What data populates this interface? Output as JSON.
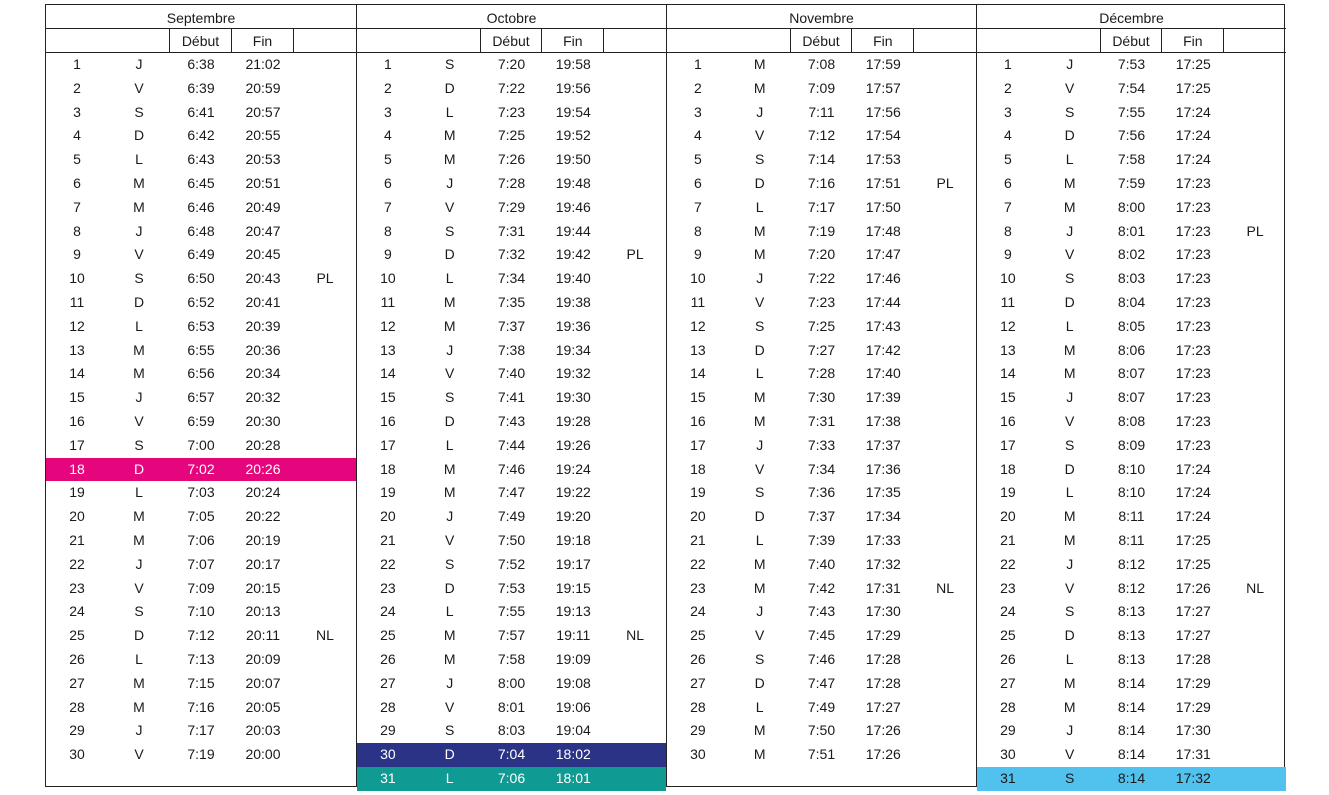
{
  "headers": {
    "start": "Début",
    "end": "Fin"
  },
  "colors": {
    "magenta": "#e5057d",
    "navy": "#2b3387",
    "teal": "#0f9a93",
    "sky": "#51c1ee"
  },
  "months": [
    {
      "name": "Septembre",
      "rows": [
        {
          "d": "1",
          "w": "J",
          "s": "6:38",
          "e": "21:02",
          "n": ""
        },
        {
          "d": "2",
          "w": "V",
          "s": "6:39",
          "e": "20:59",
          "n": ""
        },
        {
          "d": "3",
          "w": "S",
          "s": "6:41",
          "e": "20:57",
          "n": ""
        },
        {
          "d": "4",
          "w": "D",
          "s": "6:42",
          "e": "20:55",
          "n": ""
        },
        {
          "d": "5",
          "w": "L",
          "s": "6:43",
          "e": "20:53",
          "n": ""
        },
        {
          "d": "6",
          "w": "M",
          "s": "6:45",
          "e": "20:51",
          "n": ""
        },
        {
          "d": "7",
          "w": "M",
          "s": "6:46",
          "e": "20:49",
          "n": ""
        },
        {
          "d": "8",
          "w": "J",
          "s": "6:48",
          "e": "20:47",
          "n": ""
        },
        {
          "d": "9",
          "w": "V",
          "s": "6:49",
          "e": "20:45",
          "n": ""
        },
        {
          "d": "10",
          "w": "S",
          "s": "6:50",
          "e": "20:43",
          "n": "PL"
        },
        {
          "d": "11",
          "w": "D",
          "s": "6:52",
          "e": "20:41",
          "n": ""
        },
        {
          "d": "12",
          "w": "L",
          "s": "6:53",
          "e": "20:39",
          "n": ""
        },
        {
          "d": "13",
          "w": "M",
          "s": "6:55",
          "e": "20:36",
          "n": ""
        },
        {
          "d": "14",
          "w": "M",
          "s": "6:56",
          "e": "20:34",
          "n": ""
        },
        {
          "d": "15",
          "w": "J",
          "s": "6:57",
          "e": "20:32",
          "n": ""
        },
        {
          "d": "16",
          "w": "V",
          "s": "6:59",
          "e": "20:30",
          "n": ""
        },
        {
          "d": "17",
          "w": "S",
          "s": "7:00",
          "e": "20:28",
          "n": ""
        },
        {
          "d": "18",
          "w": "D",
          "s": "7:02",
          "e": "20:26",
          "n": "",
          "hl": "magenta"
        },
        {
          "d": "19",
          "w": "L",
          "s": "7:03",
          "e": "20:24",
          "n": ""
        },
        {
          "d": "20",
          "w": "M",
          "s": "7:05",
          "e": "20:22",
          "n": ""
        },
        {
          "d": "21",
          "w": "M",
          "s": "7:06",
          "e": "20:19",
          "n": ""
        },
        {
          "d": "22",
          "w": "J",
          "s": "7:07",
          "e": "20:17",
          "n": ""
        },
        {
          "d": "23",
          "w": "V",
          "s": "7:09",
          "e": "20:15",
          "n": ""
        },
        {
          "d": "24",
          "w": "S",
          "s": "7:10",
          "e": "20:13",
          "n": ""
        },
        {
          "d": "25",
          "w": "D",
          "s": "7:12",
          "e": "20:11",
          "n": "NL"
        },
        {
          "d": "26",
          "w": "L",
          "s": "7:13",
          "e": "20:09",
          "n": ""
        },
        {
          "d": "27",
          "w": "M",
          "s": "7:15",
          "e": "20:07",
          "n": ""
        },
        {
          "d": "28",
          "w": "M",
          "s": "7:16",
          "e": "20:05",
          "n": ""
        },
        {
          "d": "29",
          "w": "J",
          "s": "7:17",
          "e": "20:03",
          "n": ""
        },
        {
          "d": "30",
          "w": "V",
          "s": "7:19",
          "e": "20:00",
          "n": ""
        }
      ]
    },
    {
      "name": "Octobre",
      "rows": [
        {
          "d": "1",
          "w": "S",
          "s": "7:20",
          "e": "19:58",
          "n": ""
        },
        {
          "d": "2",
          "w": "D",
          "s": "7:22",
          "e": "19:56",
          "n": ""
        },
        {
          "d": "3",
          "w": "L",
          "s": "7:23",
          "e": "19:54",
          "n": ""
        },
        {
          "d": "4",
          "w": "M",
          "s": "7:25",
          "e": "19:52",
          "n": ""
        },
        {
          "d": "5",
          "w": "M",
          "s": "7:26",
          "e": "19:50",
          "n": ""
        },
        {
          "d": "6",
          "w": "J",
          "s": "7:28",
          "e": "19:48",
          "n": ""
        },
        {
          "d": "7",
          "w": "V",
          "s": "7:29",
          "e": "19:46",
          "n": ""
        },
        {
          "d": "8",
          "w": "S",
          "s": "7:31",
          "e": "19:44",
          "n": ""
        },
        {
          "d": "9",
          "w": "D",
          "s": "7:32",
          "e": "19:42",
          "n": "PL"
        },
        {
          "d": "10",
          "w": "L",
          "s": "7:34",
          "e": "19:40",
          "n": ""
        },
        {
          "d": "11",
          "w": "M",
          "s": "7:35",
          "e": "19:38",
          "n": ""
        },
        {
          "d": "12",
          "w": "M",
          "s": "7:37",
          "e": "19:36",
          "n": ""
        },
        {
          "d": "13",
          "w": "J",
          "s": "7:38",
          "e": "19:34",
          "n": ""
        },
        {
          "d": "14",
          "w": "V",
          "s": "7:40",
          "e": "19:32",
          "n": ""
        },
        {
          "d": "15",
          "w": "S",
          "s": "7:41",
          "e": "19:30",
          "n": ""
        },
        {
          "d": "16",
          "w": "D",
          "s": "7:43",
          "e": "19:28",
          "n": ""
        },
        {
          "d": "17",
          "w": "L",
          "s": "7:44",
          "e": "19:26",
          "n": ""
        },
        {
          "d": "18",
          "w": "M",
          "s": "7:46",
          "e": "19:24",
          "n": ""
        },
        {
          "d": "19",
          "w": "M",
          "s": "7:47",
          "e": "19:22",
          "n": ""
        },
        {
          "d": "20",
          "w": "J",
          "s": "7:49",
          "e": "19:20",
          "n": ""
        },
        {
          "d": "21",
          "w": "V",
          "s": "7:50",
          "e": "19:18",
          "n": ""
        },
        {
          "d": "22",
          "w": "S",
          "s": "7:52",
          "e": "19:17",
          "n": ""
        },
        {
          "d": "23",
          "w": "D",
          "s": "7:53",
          "e": "19:15",
          "n": ""
        },
        {
          "d": "24",
          "w": "L",
          "s": "7:55",
          "e": "19:13",
          "n": ""
        },
        {
          "d": "25",
          "w": "M",
          "s": "7:57",
          "e": "19:11",
          "n": "NL"
        },
        {
          "d": "26",
          "w": "M",
          "s": "7:58",
          "e": "19:09",
          "n": ""
        },
        {
          "d": "27",
          "w": "J",
          "s": "8:00",
          "e": "19:08",
          "n": ""
        },
        {
          "d": "28",
          "w": "V",
          "s": "8:01",
          "e": "19:06",
          "n": ""
        },
        {
          "d": "29",
          "w": "S",
          "s": "8:03",
          "e": "19:04",
          "n": ""
        },
        {
          "d": "30",
          "w": "D",
          "s": "7:04",
          "e": "18:02",
          "n": "",
          "hl": "navy"
        },
        {
          "d": "31",
          "w": "L",
          "s": "7:06",
          "e": "18:01",
          "n": "",
          "hl": "teal"
        }
      ]
    },
    {
      "name": "Novembre",
      "rows": [
        {
          "d": "1",
          "w": "M",
          "s": "7:08",
          "e": "17:59",
          "n": ""
        },
        {
          "d": "2",
          "w": "M",
          "s": "7:09",
          "e": "17:57",
          "n": ""
        },
        {
          "d": "3",
          "w": "J",
          "s": "7:11",
          "e": "17:56",
          "n": ""
        },
        {
          "d": "4",
          "w": "V",
          "s": "7:12",
          "e": "17:54",
          "n": ""
        },
        {
          "d": "5",
          "w": "S",
          "s": "7:14",
          "e": "17:53",
          "n": ""
        },
        {
          "d": "6",
          "w": "D",
          "s": "7:16",
          "e": "17:51",
          "n": "PL"
        },
        {
          "d": "7",
          "w": "L",
          "s": "7:17",
          "e": "17:50",
          "n": ""
        },
        {
          "d": "8",
          "w": "M",
          "s": "7:19",
          "e": "17:48",
          "n": ""
        },
        {
          "d": "9",
          "w": "M",
          "s": "7:20",
          "e": "17:47",
          "n": ""
        },
        {
          "d": "10",
          "w": "J",
          "s": "7:22",
          "e": "17:46",
          "n": ""
        },
        {
          "d": "11",
          "w": "V",
          "s": "7:23",
          "e": "17:44",
          "n": ""
        },
        {
          "d": "12",
          "w": "S",
          "s": "7:25",
          "e": "17:43",
          "n": ""
        },
        {
          "d": "13",
          "w": "D",
          "s": "7:27",
          "e": "17:42",
          "n": ""
        },
        {
          "d": "14",
          "w": "L",
          "s": "7:28",
          "e": "17:40",
          "n": ""
        },
        {
          "d": "15",
          "w": "M",
          "s": "7:30",
          "e": "17:39",
          "n": ""
        },
        {
          "d": "16",
          "w": "M",
          "s": "7:31",
          "e": "17:38",
          "n": ""
        },
        {
          "d": "17",
          "w": "J",
          "s": "7:33",
          "e": "17:37",
          "n": ""
        },
        {
          "d": "18",
          "w": "V",
          "s": "7:34",
          "e": "17:36",
          "n": ""
        },
        {
          "d": "19",
          "w": "S",
          "s": "7:36",
          "e": "17:35",
          "n": ""
        },
        {
          "d": "20",
          "w": "D",
          "s": "7:37",
          "e": "17:34",
          "n": ""
        },
        {
          "d": "21",
          "w": "L",
          "s": "7:39",
          "e": "17:33",
          "n": ""
        },
        {
          "d": "22",
          "w": "M",
          "s": "7:40",
          "e": "17:32",
          "n": ""
        },
        {
          "d": "23",
          "w": "M",
          "s": "7:42",
          "e": "17:31",
          "n": "NL"
        },
        {
          "d": "24",
          "w": "J",
          "s": "7:43",
          "e": "17:30",
          "n": ""
        },
        {
          "d": "25",
          "w": "V",
          "s": "7:45",
          "e": "17:29",
          "n": ""
        },
        {
          "d": "26",
          "w": "S",
          "s": "7:46",
          "e": "17:28",
          "n": ""
        },
        {
          "d": "27",
          "w": "D",
          "s": "7:47",
          "e": "17:28",
          "n": ""
        },
        {
          "d": "28",
          "w": "L",
          "s": "7:49",
          "e": "17:27",
          "n": ""
        },
        {
          "d": "29",
          "w": "M",
          "s": "7:50",
          "e": "17:26",
          "n": ""
        },
        {
          "d": "30",
          "w": "M",
          "s": "7:51",
          "e": "17:26",
          "n": ""
        }
      ]
    },
    {
      "name": "Décembre",
      "rows": [
        {
          "d": "1",
          "w": "J",
          "s": "7:53",
          "e": "17:25",
          "n": ""
        },
        {
          "d": "2",
          "w": "V",
          "s": "7:54",
          "e": "17:25",
          "n": ""
        },
        {
          "d": "3",
          "w": "S",
          "s": "7:55",
          "e": "17:24",
          "n": ""
        },
        {
          "d": "4",
          "w": "D",
          "s": "7:56",
          "e": "17:24",
          "n": ""
        },
        {
          "d": "5",
          "w": "L",
          "s": "7:58",
          "e": "17:24",
          "n": ""
        },
        {
          "d": "6",
          "w": "M",
          "s": "7:59",
          "e": "17:23",
          "n": ""
        },
        {
          "d": "7",
          "w": "M",
          "s": "8:00",
          "e": "17:23",
          "n": ""
        },
        {
          "d": "8",
          "w": "J",
          "s": "8:01",
          "e": "17:23",
          "n": "PL"
        },
        {
          "d": "9",
          "w": "V",
          "s": "8:02",
          "e": "17:23",
          "n": ""
        },
        {
          "d": "10",
          "w": "S",
          "s": "8:03",
          "e": "17:23",
          "n": ""
        },
        {
          "d": "11",
          "w": "D",
          "s": "8:04",
          "e": "17:23",
          "n": ""
        },
        {
          "d": "12",
          "w": "L",
          "s": "8:05",
          "e": "17:23",
          "n": ""
        },
        {
          "d": "13",
          "w": "M",
          "s": "8:06",
          "e": "17:23",
          "n": ""
        },
        {
          "d": "14",
          "w": "M",
          "s": "8:07",
          "e": "17:23",
          "n": ""
        },
        {
          "d": "15",
          "w": "J",
          "s": "8:07",
          "e": "17:23",
          "n": ""
        },
        {
          "d": "16",
          "w": "V",
          "s": "8:08",
          "e": "17:23",
          "n": ""
        },
        {
          "d": "17",
          "w": "S",
          "s": "8:09",
          "e": "17:23",
          "n": ""
        },
        {
          "d": "18",
          "w": "D",
          "s": "8:10",
          "e": "17:24",
          "n": ""
        },
        {
          "d": "19",
          "w": "L",
          "s": "8:10",
          "e": "17:24",
          "n": ""
        },
        {
          "d": "20",
          "w": "M",
          "s": "8:11",
          "e": "17:24",
          "n": ""
        },
        {
          "d": "21",
          "w": "M",
          "s": "8:11",
          "e": "17:25",
          "n": ""
        },
        {
          "d": "22",
          "w": "J",
          "s": "8:12",
          "e": "17:25",
          "n": ""
        },
        {
          "d": "23",
          "w": "V",
          "s": "8:12",
          "e": "17:26",
          "n": "NL"
        },
        {
          "d": "24",
          "w": "S",
          "s": "8:13",
          "e": "17:27",
          "n": ""
        },
        {
          "d": "25",
          "w": "D",
          "s": "8:13",
          "e": "17:27",
          "n": ""
        },
        {
          "d": "26",
          "w": "L",
          "s": "8:13",
          "e": "17:28",
          "n": ""
        },
        {
          "d": "27",
          "w": "M",
          "s": "8:14",
          "e": "17:29",
          "n": ""
        },
        {
          "d": "28",
          "w": "M",
          "s": "8:14",
          "e": "17:29",
          "n": ""
        },
        {
          "d": "29",
          "w": "J",
          "s": "8:14",
          "e": "17:30",
          "n": ""
        },
        {
          "d": "30",
          "w": "V",
          "s": "8:14",
          "e": "17:31",
          "n": ""
        },
        {
          "d": "31",
          "w": "S",
          "s": "8:14",
          "e": "17:32",
          "n": "",
          "hl": "sky"
        }
      ]
    }
  ]
}
